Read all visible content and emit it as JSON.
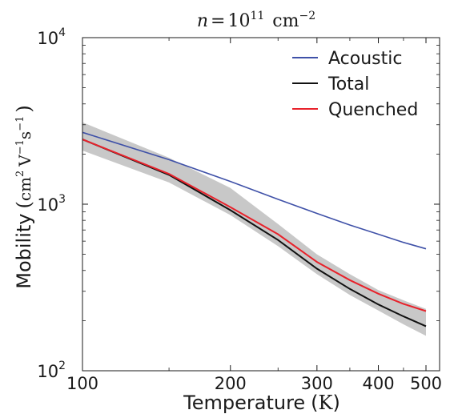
{
  "chart_data": {
    "type": "line",
    "title_parts": {
      "n": "n",
      "eq": "=",
      "base": "10",
      "exp": "11",
      "unit": "cm",
      "unit_exp": "−2"
    },
    "xlabel": {
      "word": "Temperature",
      "open": "(",
      "unit": "K",
      "close": ")"
    },
    "ylabel": {
      "word": "Mobility",
      "open": "(",
      "cm": "cm",
      "cm_exp": "2",
      "V": "V",
      "V_exp": "−1",
      "s": "s",
      "s_exp": "−1",
      "close": ")"
    },
    "x_scale": "log",
    "y_scale": "log",
    "xlim": [
      100,
      500
    ],
    "ylim": [
      100,
      10000
    ],
    "x_ticks": [
      {
        "value": 100,
        "label": "100"
      },
      {
        "value": 200,
        "label": "200"
      },
      {
        "value": 300,
        "label": "300"
      },
      {
        "value": 400,
        "label": "400"
      },
      {
        "value": 500,
        "label": "500"
      }
    ],
    "y_ticks": [
      {
        "value": 100,
        "base": "10",
        "exp": "2"
      },
      {
        "value": 1000,
        "base": "10",
        "exp": "3"
      },
      {
        "value": 10000,
        "base": "10",
        "exp": "4"
      }
    ],
    "legend_position": "top-right",
    "grid": false,
    "band": {
      "color": "#c8c8c8",
      "x": [
        100,
        150,
        200,
        250,
        300,
        350,
        400,
        450,
        500
      ],
      "upper": [
        3100,
        1900,
        1250,
        760,
        500,
        380,
        305,
        265,
        235
      ],
      "lower": [
        2100,
        1350,
        860,
        560,
        380,
        285,
        230,
        190,
        162
      ]
    },
    "series": [
      {
        "name": "Acoustic",
        "color": "#3f51a8",
        "x": [
          100,
          150,
          200,
          250,
          300,
          350,
          400,
          450,
          500
        ],
        "y": [
          2700,
          1850,
          1370,
          1070,
          880,
          750,
          660,
          590,
          540
        ]
      },
      {
        "name": "Total",
        "color": "#111111",
        "x": [
          100,
          150,
          200,
          250,
          300,
          350,
          400,
          450,
          500
        ],
        "y": [
          2450,
          1500,
          920,
          610,
          410,
          310,
          250,
          212,
          185
        ]
      },
      {
        "name": "Quenched",
        "color": "#e8222b",
        "x": [
          100,
          150,
          200,
          250,
          300,
          350,
          400,
          450,
          500
        ],
        "y": [
          2450,
          1520,
          960,
          660,
          450,
          350,
          290,
          252,
          228
        ]
      }
    ]
  }
}
